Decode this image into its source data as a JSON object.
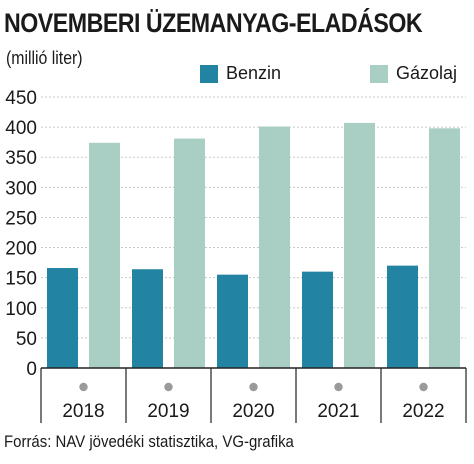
{
  "header": {
    "title": "NOVEMBERI ÜZEMANYAG-ELADÁSOK",
    "unit": "(millió liter)"
  },
  "footer": {
    "source": "Forrás: NAV jövedéki statisztika, VG-grafika"
  },
  "colors": {
    "benzin": "#2383a3",
    "gazolaj": "#a9cfc4",
    "marker": "#9a9a9a"
  },
  "chart_data": {
    "type": "bar",
    "title": "NOVEMBERI ÜZEMANYAG-ELADÁSOK",
    "ylabel": "(millió liter)",
    "categories": [
      "2018",
      "2019",
      "2020",
      "2021",
      "2022"
    ],
    "series": [
      {
        "name": "Benzin",
        "values": [
          166,
          164,
          155,
          160,
          170
        ]
      },
      {
        "name": "Gázolaj",
        "values": [
          374,
          381,
          401,
          407,
          398
        ]
      }
    ],
    "ylim": [
      0,
      450
    ],
    "yticks": [
      0,
      50,
      100,
      150,
      200,
      250,
      300,
      350,
      400,
      450
    ],
    "grid": true,
    "legend": "top-right"
  }
}
